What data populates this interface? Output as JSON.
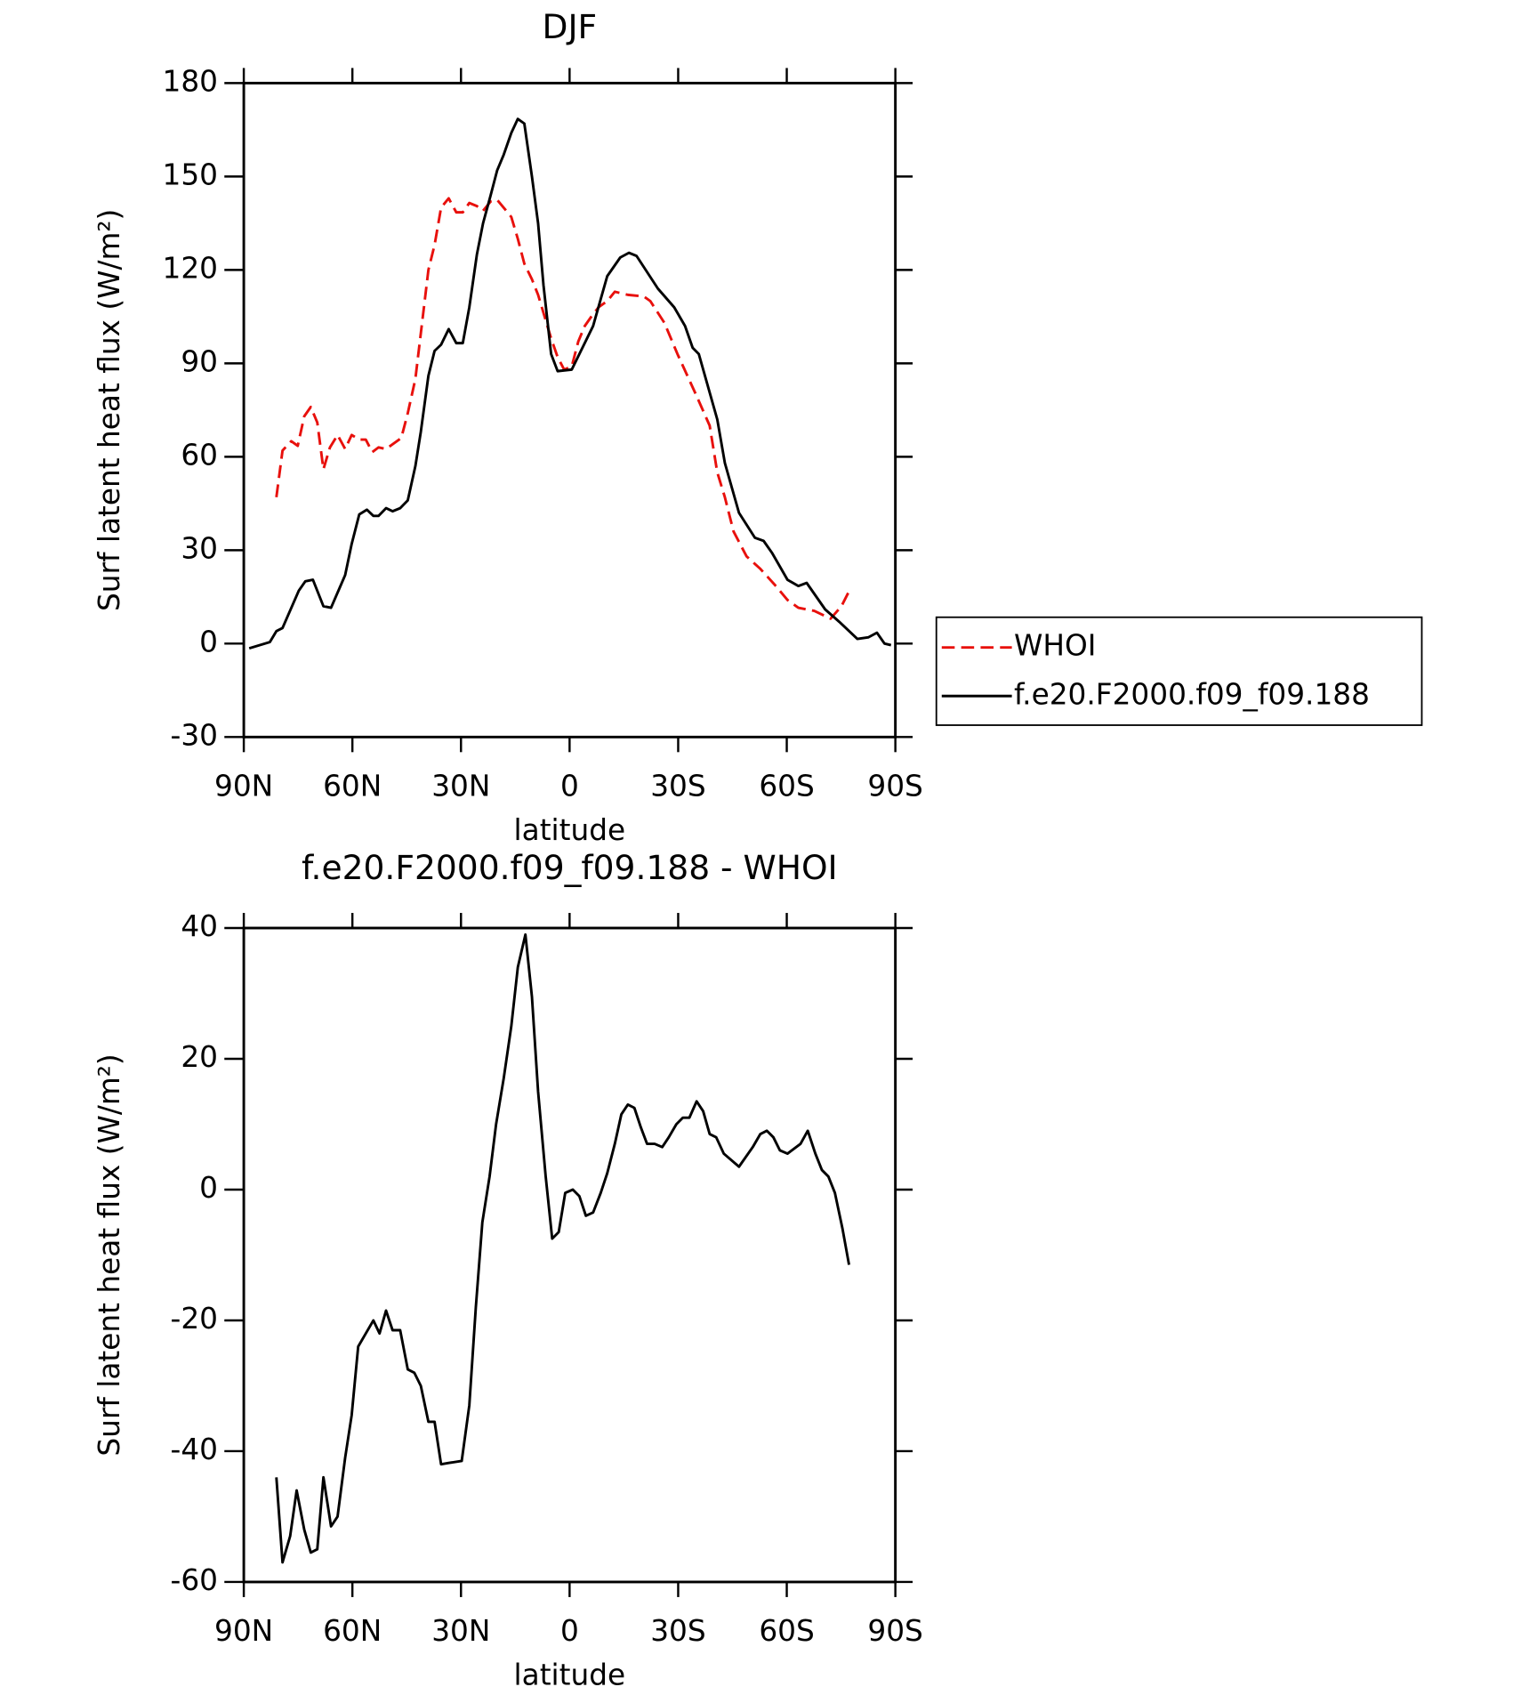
{
  "chart_data": [
    {
      "type": "line",
      "title": "DJF",
      "xlabel": "latitude",
      "ylabel": "Surf latent heat flux (W/m²)",
      "xlim": [
        90,
        -90
      ],
      "xticks": [
        {
          "value": 90,
          "label": "90N"
        },
        {
          "value": 60,
          "label": "60N"
        },
        {
          "value": 30,
          "label": "30N"
        },
        0,
        {
          "value": -30,
          "label": "30S"
        },
        {
          "value": -60,
          "label": "60S"
        },
        {
          "value": -90,
          "label": "90S"
        }
      ],
      "ylim": [
        -30,
        180
      ],
      "yticks": [
        -30,
        0,
        30,
        60,
        90,
        120,
        150,
        180
      ],
      "legend": "right",
      "series": [
        {
          "name": "WHOI",
          "color": "#e8100c",
          "line_style": "dashed",
          "x": [
            81,
            79.3,
            76.9,
            75.1,
            73.3,
            71.5,
            69.7,
            68,
            66.2,
            64.1,
            62,
            60.2,
            58.1,
            56.3,
            54.5,
            52.8,
            50.7,
            48.3,
            46.5,
            44.7,
            42.6,
            39,
            37.3,
            35.5,
            33.4,
            31.3,
            29.5,
            27.7,
            25.6,
            23.9,
            21.8,
            20,
            18.2,
            16.1,
            14.3,
            12.5,
            10.4,
            8.7,
            6.9,
            5.1,
            3.3,
            1.5,
            -0.6,
            -2.4,
            -4.2,
            -6,
            -8,
            -10.4,
            -12.5,
            -16.1,
            -20.5,
            -22.3,
            -26.2,
            -29.8,
            -34.9,
            -38.7,
            -40.8,
            -42.9,
            -45.3,
            -48.9,
            -52.7,
            -56.6,
            -60.2,
            -63.2,
            -67.6,
            -72.1,
            -75.1,
            -77.5
          ],
          "values": [
            47,
            62,
            65,
            63.5,
            73,
            76,
            71,
            56,
            63,
            67,
            62.5,
            67,
            65.5,
            65.5,
            61.5,
            63,
            62.5,
            64.5,
            66,
            74,
            85,
            120,
            128,
            140,
            143,
            138.5,
            138.5,
            141.5,
            140.5,
            139,
            142,
            142.5,
            140,
            137,
            130,
            122,
            117,
            112,
            105,
            98,
            92,
            88,
            89,
            97,
            102,
            105,
            108,
            110,
            113,
            112,
            111.5,
            110,
            103,
            93,
            80,
            70,
            55,
            47,
            36,
            28,
            24,
            19,
            14,
            11.5,
            10.5,
            8,
            12,
            17.5
          ]
        },
        {
          "name": "f.e20.F2000.f09_f09.188",
          "color": "#000000",
          "line_style": "solid",
          "x": [
            88.5,
            82.8,
            81,
            79.3,
            74.8,
            73,
            70.9,
            68,
            65.9,
            62,
            60.2,
            58.1,
            56,
            54.2,
            52.8,
            50.7,
            48.9,
            46.8,
            44.7,
            42.6,
            41.1,
            39,
            37.3,
            35.5,
            33.4,
            31.3,
            29.5,
            27.7,
            25.6,
            23.9,
            21.8,
            20,
            18.2,
            16.1,
            14.3,
            12.5,
            10.4,
            8.7,
            7.2,
            5.1,
            3.3,
            -0.6,
            -6.5,
            -10.4,
            -14,
            -16.4,
            -18.5,
            -24.4,
            -28.9,
            -31.9,
            -34,
            -35.7,
            -40.8,
            -42.9,
            -46.8,
            -51.2,
            -53.6,
            -56,
            -60.2,
            -63.2,
            -65.5,
            -70.6,
            -74.5,
            -79.5,
            -82.5,
            -84.9,
            -87,
            -88.8
          ],
          "values": [
            -1.5,
            0.5,
            4,
            5,
            17,
            20,
            20.5,
            12,
            11.5,
            22,
            32,
            41.5,
            43,
            41,
            41,
            43.5,
            42.5,
            43.5,
            46,
            57,
            68,
            86,
            94,
            96,
            101,
            96.5,
            96.5,
            108,
            125,
            135,
            144,
            152,
            157,
            164,
            168.5,
            167,
            150,
            135,
            115,
            93,
            87.5,
            88,
            102,
            118,
            124,
            125.5,
            124.5,
            114,
            108,
            102,
            95,
            93,
            72,
            58,
            42,
            34,
            33,
            29,
            20.5,
            18.5,
            19.5,
            11,
            7,
            1.5,
            2,
            3.5,
            0,
            -0.5
          ]
        }
      ]
    },
    {
      "type": "line",
      "title": "f.e20.F2000.f09_f09.188 - WHOI",
      "xlabel": "latitude",
      "ylabel": "Surf latent heat flux (W/m²)",
      "xlim": [
        90,
        -90
      ],
      "xticks": [
        {
          "value": 90,
          "label": "90N"
        },
        {
          "value": 60,
          "label": "60N"
        },
        {
          "value": 30,
          "label": "30N"
        },
        0,
        {
          "value": -30,
          "label": "30S"
        },
        {
          "value": -60,
          "label": "60S"
        },
        {
          "value": -90,
          "label": "90S"
        }
      ],
      "ylim": [
        -60,
        40
      ],
      "yticks": [
        -60,
        -40,
        -20,
        0,
        20,
        40
      ],
      "color": "#000000",
      "x": [
        81,
        79.3,
        77.2,
        75.4,
        73.3,
        71.5,
        69.7,
        68,
        65.9,
        64.1,
        62,
        60.2,
        58.4,
        56.3,
        54.2,
        52.5,
        50.7,
        48.9,
        46.8,
        44.7,
        42.9,
        41.1,
        39,
        37.3,
        35.5,
        33.4,
        29.8,
        27.7,
        25.9,
        24.1,
        22.1,
        20.3,
        18.2,
        16.1,
        14.3,
        12.2,
        10.4,
        8.7,
        6.6,
        4.8,
        3,
        1.2,
        -0.9,
        -2.7,
        -4.5,
        -6.5,
        -8.6,
        -10.4,
        -12.5,
        -14.3,
        -16.1,
        -17.9,
        -19.7,
        -21.4,
        -23.5,
        -25.6,
        -27.4,
        -29.5,
        -31.3,
        -33.1,
        -35.1,
        -36.9,
        -38.7,
        -40.5,
        -42.6,
        -46.8,
        -50.6,
        -52.7,
        -54.5,
        -56.3,
        -58.1,
        -60.2,
        -63.8,
        -65.8,
        -67.9,
        -69.7,
        -71.5,
        -73.3,
        -75.4,
        -77.2
      ],
      "values": [
        -44,
        -57,
        -53,
        -46,
        -52,
        -55.5,
        -55,
        -44,
        -51.5,
        -50,
        -41,
        -34.5,
        -24,
        -22,
        -20,
        -22,
        -18.5,
        -21.5,
        -21.5,
        -27.5,
        -28,
        -30,
        -35.5,
        -35.5,
        -42,
        -41.8,
        -41.5,
        -33,
        -18,
        -5,
        2,
        10,
        17,
        25,
        34,
        39,
        29.5,
        15,
        2,
        -7.5,
        -6.5,
        -0.5,
        0,
        -1,
        -4,
        -3.5,
        -0.5,
        2.5,
        7,
        11.5,
        13,
        12.5,
        9.5,
        7,
        7,
        6.5,
        8,
        10,
        11,
        11,
        13.5,
        12,
        8.5,
        8,
        5.5,
        3.5,
        6.5,
        8.5,
        9,
        8,
        6,
        5.5,
        7,
        9,
        5.5,
        3,
        2,
        -0.5,
        -6,
        -11.5
      ]
    }
  ]
}
